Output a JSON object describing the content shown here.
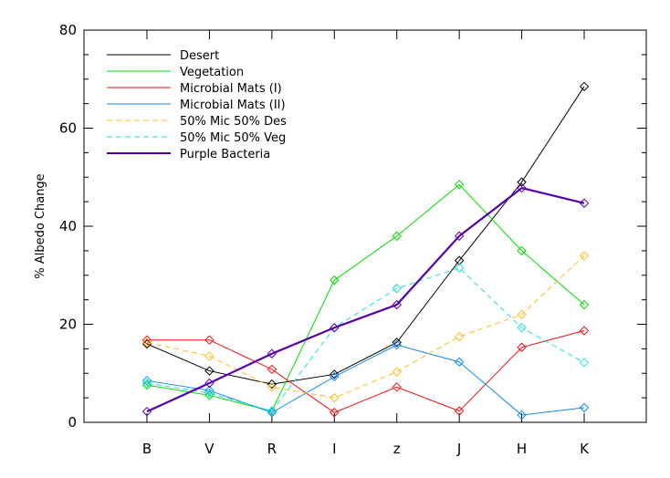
{
  "chart_data": {
    "type": "line",
    "title": "",
    "xlabel": "",
    "ylabel": "% Albedo Change",
    "categories": [
      "B",
      "V",
      "R",
      "I",
      "z",
      "J",
      "H",
      "K"
    ],
    "ylim": [
      0,
      80
    ],
    "yticks": [
      0,
      20,
      40,
      60,
      80
    ],
    "grid": false,
    "legend_position": "top-left",
    "series": [
      {
        "name": "Desert",
        "color": "#000000",
        "dash": "solid",
        "thick": false,
        "values": [
          16.0,
          10.5,
          7.8,
          9.8,
          16.3,
          33.0,
          49.0,
          68.5
        ]
      },
      {
        "name": "Vegetation",
        "color": "#00dd00",
        "dash": "solid",
        "thick": false,
        "values": [
          7.6,
          5.5,
          2.3,
          29.0,
          38.0,
          48.5,
          35.0,
          24.0
        ]
      },
      {
        "name": "Microbial Mats (I)",
        "color": "#ee1111",
        "dash": "solid",
        "thick": false,
        "values": [
          16.8,
          16.8,
          10.8,
          2.0,
          7.2,
          2.3,
          15.3,
          18.7
        ]
      },
      {
        "name": "Microbial Mats (II)",
        "color": "#1188ee",
        "dash": "solid",
        "thick": false,
        "values": [
          8.5,
          6.5,
          2.0,
          9.3,
          15.8,
          12.3,
          1.5,
          3.0
        ]
      },
      {
        "name": "50% Mic 50% Des",
        "color": "#ffbb22",
        "dash": "dashed",
        "thick": false,
        "values": [
          16.3,
          13.5,
          7.2,
          5.0,
          10.3,
          17.5,
          22.0,
          34.0
        ]
      },
      {
        "name": "50% Mic 50% Veg",
        "color": "#22dddd",
        "dash": "dashed",
        "thick": false,
        "values": [
          8.0,
          6.0,
          2.3,
          19.3,
          27.3,
          31.5,
          19.3,
          12.2
        ]
      },
      {
        "name": "Purple Bacteria",
        "color": "#5500aa",
        "dash": "solid",
        "thick": true,
        "values": [
          2.2,
          8.0,
          14.0,
          19.3,
          24.0,
          38.0,
          47.8,
          44.7
        ]
      }
    ]
  }
}
